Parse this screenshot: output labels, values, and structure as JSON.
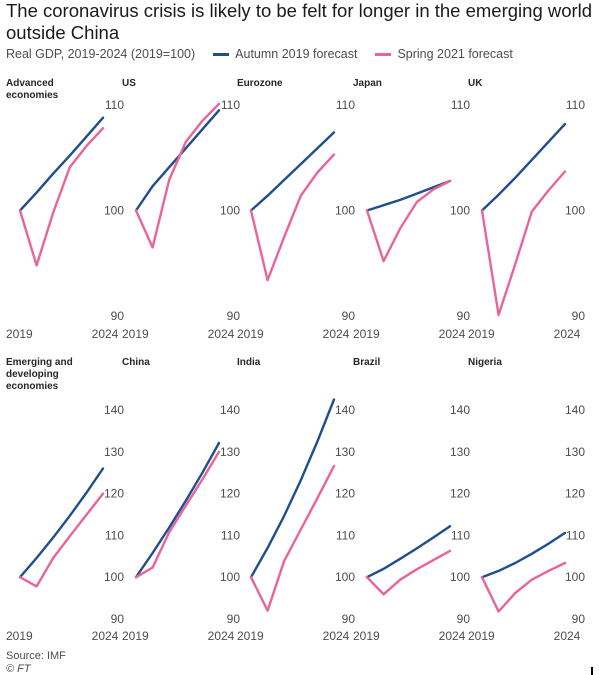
{
  "title": "The coronavirus crisis is likely to be felt for longer in the emerging world outside China",
  "subtitle": "Real GDP, 2019-2024 (2019=100)",
  "legend": [
    {
      "label": "Autumn 2019 forecast",
      "color": "#1f4e8c"
    },
    {
      "label": "Spring 2021 forecast",
      "color": "#e8649a"
    }
  ],
  "source": "Source: IMF",
  "copyright": "© FT",
  "chart_data": [
    {
      "type": "line",
      "title": "Advanced economies",
      "title_lines": [
        "Advanced",
        "economies"
      ],
      "x": [
        2019,
        2020,
        2021,
        2022,
        2023,
        2024
      ],
      "xticks": [
        "2019",
        "2024"
      ],
      "ylim": [
        90,
        110
      ],
      "yticks": [
        "90",
        "100",
        "110"
      ],
      "series": [
        {
          "name": "Autumn 2019 forecast",
          "values": [
            100,
            101.7,
            103.5,
            105.2,
            107,
            108.8
          ]
        },
        {
          "name": "Spring 2021 forecast",
          "values": [
            100,
            94.8,
            99.8,
            104.1,
            106.1,
            107.8
          ]
        }
      ]
    },
    {
      "type": "line",
      "title": "US",
      "title_lines": [
        "US"
      ],
      "x": [
        2019,
        2020,
        2021,
        2022,
        2023,
        2024
      ],
      "xticks": [
        "2019",
        "2024"
      ],
      "ylim": [
        90,
        110
      ],
      "yticks": [
        "90",
        "100",
        "110"
      ],
      "series": [
        {
          "name": "Autumn 2019 forecast",
          "values": [
            100,
            102.3,
            104.1,
            105.9,
            107.7,
            109.5
          ]
        },
        {
          "name": "Spring 2021 forecast",
          "values": [
            100,
            96.5,
            102.9,
            106.5,
            108.5,
            110.1
          ]
        }
      ]
    },
    {
      "type": "line",
      "title": "Eurozone",
      "title_lines": [
        "Eurozone"
      ],
      "x": [
        2019,
        2020,
        2021,
        2022,
        2023,
        2024
      ],
      "xticks": [
        "2019",
        "2024"
      ],
      "ylim": [
        90,
        110
      ],
      "yticks": [
        "90",
        "100",
        "110"
      ],
      "series": [
        {
          "name": "Autumn 2019 forecast",
          "values": [
            100,
            101.4,
            102.9,
            104.4,
            105.9,
            107.4
          ]
        },
        {
          "name": "Spring 2021 forecast",
          "values": [
            100,
            93.4,
            97.5,
            101.4,
            103.6,
            105.3
          ]
        }
      ]
    },
    {
      "type": "line",
      "title": "Japan",
      "title_lines": [
        "Japan"
      ],
      "x": [
        2019,
        2020,
        2021,
        2022,
        2023,
        2024
      ],
      "xticks": [
        "2019",
        "2024"
      ],
      "ylim": [
        90,
        110
      ],
      "yticks": [
        "90",
        "100",
        "110"
      ],
      "series": [
        {
          "name": "Autumn 2019 forecast",
          "values": [
            100,
            100.5,
            101,
            101.6,
            102.2,
            102.8
          ]
        },
        {
          "name": "Spring 2021 forecast",
          "values": [
            100,
            95.2,
            98.3,
            100.8,
            102,
            102.8
          ]
        }
      ]
    },
    {
      "type": "line",
      "title": "UK",
      "title_lines": [
        "UK"
      ],
      "x": [
        2019,
        2020,
        2021,
        2022,
        2023,
        2024
      ],
      "xticks": [
        "2019",
        "2024"
      ],
      "ylim": [
        90,
        110
      ],
      "yticks": [
        "90",
        "100",
        "110"
      ],
      "series": [
        {
          "name": "Autumn 2019 forecast",
          "values": [
            100,
            101.5,
            103.1,
            104.8,
            106.5,
            108.2
          ]
        },
        {
          "name": "Spring 2021 forecast",
          "values": [
            100,
            90.1,
            94.9,
            99.9,
            101.9,
            103.7
          ]
        }
      ]
    },
    {
      "type": "line",
      "title": "Emerging and developing economies",
      "title_lines": [
        "Emerging and",
        "developing",
        "economies"
      ],
      "x": [
        2019,
        2020,
        2021,
        2022,
        2023,
        2024
      ],
      "xticks": [
        "2019",
        "2024"
      ],
      "ylim": [
        90,
        140
      ],
      "yticks": [
        "90",
        "100",
        "110",
        "120",
        "130",
        "140"
      ],
      "series": [
        {
          "name": "Autumn 2019 forecast",
          "values": [
            100,
            104.6,
            109.5,
            114.7,
            120.2,
            126
          ]
        },
        {
          "name": "Spring 2021 forecast",
          "values": [
            100,
            97.8,
            104.6,
            109.8,
            114.9,
            120
          ]
        }
      ]
    },
    {
      "type": "line",
      "title": "China",
      "title_lines": [
        "China"
      ],
      "x": [
        2019,
        2020,
        2021,
        2022,
        2023,
        2024
      ],
      "xticks": [
        "2019",
        "2024"
      ],
      "ylim": [
        90,
        140
      ],
      "yticks": [
        "90",
        "100",
        "110",
        "120",
        "130",
        "140"
      ],
      "series": [
        {
          "name": "Autumn 2019 forecast",
          "values": [
            100,
            105.8,
            111.9,
            118.3,
            125,
            132.1
          ]
        },
        {
          "name": "Spring 2021 forecast",
          "values": [
            100,
            102.3,
            110.8,
            117.1,
            123.4,
            130
          ]
        }
      ]
    },
    {
      "type": "line",
      "title": "India",
      "title_lines": [
        "India"
      ],
      "x": [
        2019,
        2020,
        2021,
        2022,
        2023,
        2024
      ],
      "xticks": [
        "2019",
        "2024"
      ],
      "ylim": [
        90,
        140
      ],
      "yticks": [
        "90",
        "100",
        "110",
        "120",
        "130",
        "140"
      ],
      "series": [
        {
          "name": "Autumn 2019 forecast",
          "values": [
            100,
            107,
            114.7,
            123.2,
            132.5,
            142.5
          ]
        },
        {
          "name": "Spring 2021 forecast",
          "values": [
            100,
            92,
            103.9,
            111.4,
            118.9,
            126.6
          ]
        }
      ]
    },
    {
      "type": "line",
      "title": "Brazil",
      "title_lines": [
        "Brazil"
      ],
      "x": [
        2019,
        2020,
        2021,
        2022,
        2023,
        2024
      ],
      "xticks": [
        "2019",
        "2024"
      ],
      "ylim": [
        90,
        140
      ],
      "yticks": [
        "90",
        "100",
        "110",
        "120",
        "130",
        "140"
      ],
      "series": [
        {
          "name": "Autumn 2019 forecast",
          "values": [
            100,
            102,
            104.4,
            106.9,
            109.5,
            112.2
          ]
        },
        {
          "name": "Spring 2021 forecast",
          "values": [
            100,
            95.9,
            99.4,
            101.9,
            104.1,
            106.3
          ]
        }
      ]
    },
    {
      "type": "line",
      "title": "Nigeria",
      "title_lines": [
        "Nigeria"
      ],
      "x": [
        2019,
        2020,
        2021,
        2022,
        2023,
        2024
      ],
      "xticks": [
        "2019",
        "2024"
      ],
      "ylim": [
        90,
        140
      ],
      "yticks": [
        "90",
        "100",
        "110",
        "120",
        "130",
        "140"
      ],
      "series": [
        {
          "name": "Autumn 2019 forecast",
          "values": [
            100,
            101.5,
            103.4,
            105.6,
            108,
            110.6
          ]
        },
        {
          "name": "Spring 2021 forecast",
          "values": [
            100,
            91.8,
            96.2,
            99.4,
            101.5,
            103.4
          ]
        }
      ]
    }
  ]
}
